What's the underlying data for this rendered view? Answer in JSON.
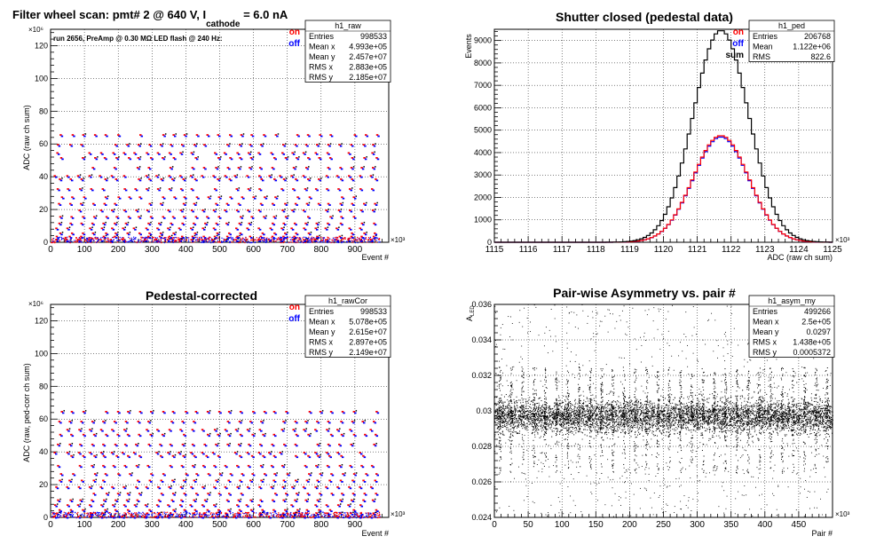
{
  "colors": {
    "on": "#ff0000",
    "off": "#0000ff",
    "sum": "#000000",
    "grid": "#000000"
  },
  "chart_data": [
    {
      "id": "raw",
      "type": "scatter",
      "title": {
        "pre": "Filter wheel scan: pmt#   2 @   640 V, I",
        "sub": "cathode",
        "post": " = 6.0 nA"
      },
      "xlabel": "Event #",
      "ylabel": "ADC (raw ch sum)",
      "xexp": "×10³",
      "yexp": "×10⁶",
      "xlim": [
        0,
        1000
      ],
      "ylim": [
        0,
        130
      ],
      "xticks": [
        0,
        100,
        200,
        300,
        400,
        500,
        600,
        700,
        800,
        900
      ],
      "yticks": [
        0,
        20,
        40,
        60,
        80,
        100,
        120
      ],
      "yminor": 4,
      "xminor": 4,
      "info": "run 2656, PreAmp @ 0.30 MΩ  LED flash @  240 Hz:",
      "legend": [
        {
          "label": "on",
          "color": "#ff0000"
        },
        {
          "label": "off",
          "color": "#0000ff"
        }
      ],
      "stats": {
        "name": "h1_raw",
        "rows": [
          [
            "Entries",
            "998533"
          ],
          [
            "Mean x",
            "4.993e+05"
          ],
          [
            "Mean y",
            "2.457e+07"
          ],
          [
            "RMS x",
            "2.883e+05"
          ],
          [
            "RMS y",
            "2.185e+07"
          ]
        ]
      },
      "points": {
        "levels": [
          2,
          4,
          6,
          9,
          12,
          16,
          20,
          24,
          28,
          33,
          39,
          41,
          46,
          52,
          55,
          60,
          66
        ],
        "period": 33.3,
        "xmax": 973
      }
    },
    {
      "id": "ped",
      "type": "line",
      "title": "Shutter closed (pedestal data)",
      "xlabel": "ADC (raw ch sum)",
      "ylabel": "Events",
      "xexp": "×10³",
      "xlim": [
        1115,
        1125
      ],
      "ylim": [
        0,
        9500
      ],
      "xticks": [
        1115,
        1116,
        1117,
        1118,
        1119,
        1120,
        1121,
        1122,
        1123,
        1124,
        1125
      ],
      "yticks": [
        0,
        1000,
        2000,
        3000,
        4000,
        5000,
        6000,
        7000,
        8000,
        9000
      ],
      "legend": [
        {
          "label": "on",
          "color": "#ff0000"
        },
        {
          "label": "off",
          "color": "#0000ff"
        },
        {
          "label": "sum",
          "color": "#000000"
        }
      ],
      "stats": {
        "name": "h1_ped",
        "rows": [
          [
            "Entries",
            "206768"
          ],
          [
            "Mean",
            "1.122e+06"
          ],
          [
            "RMS",
            "822.6"
          ]
        ]
      },
      "series": [
        {
          "name": "sum",
          "color": "#000000",
          "mean": 1121.7,
          "sigma": 0.82,
          "peak": 9450
        },
        {
          "name": "on",
          "color": "#ff0000",
          "mean": 1121.7,
          "sigma": 0.82,
          "peak": 4760
        },
        {
          "name": "off",
          "color": "#0000ff",
          "mean": 1121.7,
          "sigma": 0.82,
          "peak": 4700
        }
      ],
      "binwidth": 0.1
    },
    {
      "id": "rawcor",
      "type": "scatter",
      "title": "Pedestal-corrected",
      "xlabel": "Event #",
      "ylabel": "ADC (raw, ped-corr ch sum)",
      "xexp": "×10³",
      "yexp": "×10⁶",
      "xlim": [
        0,
        1000
      ],
      "ylim": [
        0,
        130
      ],
      "xticks": [
        0,
        100,
        200,
        300,
        400,
        500,
        600,
        700,
        800,
        900
      ],
      "yticks": [
        0,
        20,
        40,
        60,
        80,
        100,
        120
      ],
      "legend": [
        {
          "label": "on",
          "color": "#ff0000"
        },
        {
          "label": "off",
          "color": "#0000ff"
        }
      ],
      "stats": {
        "name": "h1_rawCor",
        "rows": [
          [
            "Entries",
            "998533"
          ],
          [
            "Mean x",
            "5.078e+05"
          ],
          [
            "Mean y",
            "2.615e+07"
          ],
          [
            "RMS x",
            "2.897e+05"
          ],
          [
            "RMS y",
            "2.149e+07"
          ]
        ]
      },
      "points": {
        "levels": [
          1,
          3,
          5,
          8,
          11,
          15,
          19,
          23,
          27,
          32,
          38,
          40,
          45,
          51,
          54,
          59,
          65
        ],
        "period": 33.3,
        "xmax": 973
      }
    },
    {
      "id": "asym",
      "type": "scatter",
      "title": "Pair-wise Asymmetry vs. pair #",
      "xlabel": "Pair #",
      "ylabel": "A",
      "ylabel_sub": "LED",
      "xexp": "×10³",
      "xlim": [
        0,
        500
      ],
      "ylim": [
        0.024,
        0.036
      ],
      "xticks": [
        0,
        50,
        100,
        150,
        200,
        250,
        300,
        350,
        400,
        450
      ],
      "yticks": [
        0.024,
        0.026,
        0.028,
        0.03,
        0.032,
        0.034,
        0.036
      ],
      "ytick_labels": [
        "0.024",
        "0.026",
        "0.028",
        "0.03",
        "0.032",
        "0.034",
        "0.036"
      ],
      "stats": {
        "name": "h1_asym_my",
        "rows": [
          [
            "Entries",
            "499266"
          ],
          [
            "Mean x",
            "2.5e+05"
          ],
          [
            "Mean y",
            "0.0297"
          ],
          [
            "RMS x",
            "1.438e+05"
          ],
          [
            "RMS y",
            "0.0005372"
          ]
        ]
      },
      "band": {
        "center": 0.0297,
        "halfwidth": 0.0005,
        "spike_period": 16.67,
        "spike_top": 0.0325,
        "spike_bottom": 0.0265
      }
    }
  ]
}
